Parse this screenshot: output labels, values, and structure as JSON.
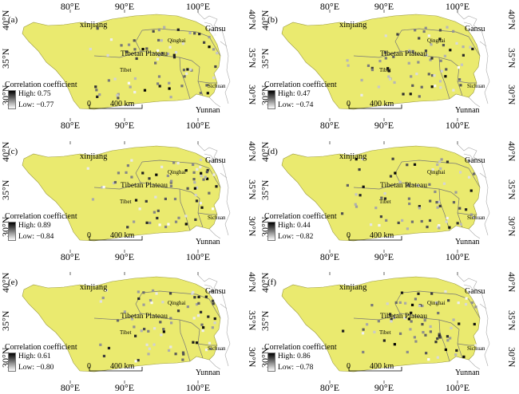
{
  "axes": {
    "top_ticks": [
      "80°E",
      "90°E",
      "100°E"
    ],
    "bottom_ticks": [
      "80°E",
      "90°E",
      "100°E"
    ],
    "lat_ticks": [
      "40°N",
      "35°N",
      "30°N"
    ]
  },
  "places": {
    "xinjiang": "xinjiang",
    "gansu": "Gansu",
    "qinghai": "Qinghai",
    "plateau": "Tibetan Plateau",
    "tibet": "Tibet",
    "sichuan": "Sichuan",
    "yunnan": "Yunnan"
  },
  "legend_title": "Correlation coefficient",
  "scale_bar": {
    "zero": "0",
    "distance": "400 km"
  },
  "colors": {
    "plateau_fill": "#eaea6f",
    "border": "#777777",
    "station_high": "#000000",
    "station_low": "#ffffff"
  },
  "panels": [
    {
      "letter": "(a)",
      "high": "High: 0.75",
      "low": "Low: −0.77"
    },
    {
      "letter": "(b)",
      "high": "High: 0.47",
      "low": "Low: −0.74"
    },
    {
      "letter": "(c)",
      "high": "High: 0.89",
      "low": "Low: −0.84"
    },
    {
      "letter": "(d)",
      "high": "High: 0.44",
      "low": "Low: −0.82"
    },
    {
      "letter": "(e)",
      "high": "High: 0.61",
      "low": "Low: −0.80"
    },
    {
      "letter": "(f)",
      "high": "High: 0.86",
      "low": "Low: −0.78"
    }
  ]
}
